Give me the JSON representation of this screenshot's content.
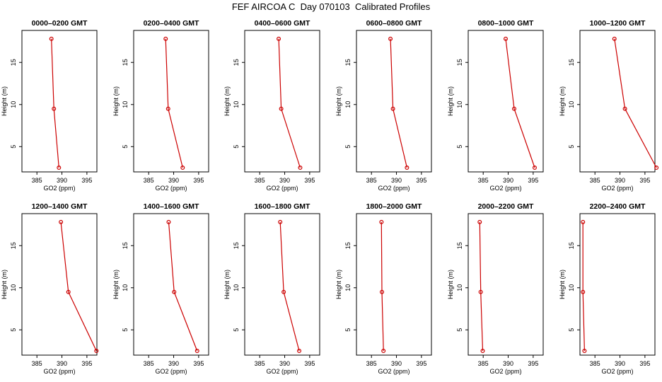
{
  "figure_title": "FEF AIRCOA C  Day 070103  Calibrated Profiles",
  "colors": {
    "profile": "#cc0000",
    "axis": "#000000"
  },
  "chart_data": [
    {
      "type": "line",
      "title": "0000–0200 GMT",
      "xlabel": "GO2 (ppm)",
      "ylabel": "Height (m)",
      "xlim": [
        382,
        397
      ],
      "ylim": [
        2,
        18.8
      ],
      "xticks": [
        385,
        390,
        395
      ],
      "yticks": [
        5,
        10,
        15
      ],
      "x": [
        389.4,
        388.4,
        387.9
      ],
      "y": [
        2.5,
        9.5,
        17.8
      ]
    },
    {
      "type": "line",
      "title": "0200–0400 GMT",
      "xlabel": "GO2 (ppm)",
      "ylabel": "Height (m)",
      "xlim": [
        382,
        397
      ],
      "ylim": [
        2,
        18.8
      ],
      "xticks": [
        385,
        390,
        395
      ],
      "yticks": [
        5,
        10,
        15
      ],
      "x": [
        391.8,
        388.9,
        388.4
      ],
      "y": [
        2.5,
        9.5,
        17.8
      ]
    },
    {
      "type": "line",
      "title": "0400–0600 GMT",
      "xlabel": "GO2 (ppm)",
      "ylabel": "Height (m)",
      "xlim": [
        382,
        397
      ],
      "ylim": [
        2,
        18.8
      ],
      "xticks": [
        385,
        390,
        395
      ],
      "yticks": [
        5,
        10,
        15
      ],
      "x": [
        393.1,
        389.3,
        388.8
      ],
      "y": [
        2.5,
        9.5,
        17.8
      ]
    },
    {
      "type": "line",
      "title": "0600–0800 GMT",
      "xlabel": "GO2 (ppm)",
      "ylabel": "Height (m)",
      "xlim": [
        382,
        397
      ],
      "ylim": [
        2,
        18.8
      ],
      "xticks": [
        385,
        390,
        395
      ],
      "yticks": [
        5,
        10,
        15
      ],
      "x": [
        392.1,
        389.3,
        388.8
      ],
      "y": [
        2.5,
        9.5,
        17.8
      ]
    },
    {
      "type": "line",
      "title": "0800–1000 GMT",
      "xlabel": "GO2 (ppm)",
      "ylabel": "Height (m)",
      "xlim": [
        382,
        397
      ],
      "ylim": [
        2,
        18.8
      ],
      "xticks": [
        385,
        390,
        395
      ],
      "yticks": [
        5,
        10,
        15
      ],
      "x": [
        395.3,
        391.2,
        389.5
      ],
      "y": [
        2.5,
        9.5,
        17.8
      ]
    },
    {
      "type": "line",
      "title": "1000–1200 GMT",
      "xlabel": "GO2 (ppm)",
      "ylabel": "Height (m)",
      "xlim": [
        382,
        397
      ],
      "ylim": [
        2,
        18.8
      ],
      "xticks": [
        385,
        390,
        395
      ],
      "yticks": [
        5,
        10,
        15
      ],
      "x": [
        397.3,
        391.0,
        388.9
      ],
      "y": [
        2.5,
        9.5,
        17.8
      ]
    },
    {
      "type": "line",
      "title": "1200–1400 GMT",
      "xlabel": "GO2 (ppm)",
      "ylabel": "Height (m)",
      "xlim": [
        382,
        397
      ],
      "ylim": [
        2,
        18.8
      ],
      "xticks": [
        385,
        390,
        395
      ],
      "yticks": [
        5,
        10,
        15
      ],
      "x": [
        396.9,
        391.3,
        389.8
      ],
      "y": [
        2.5,
        9.5,
        17.8
      ]
    },
    {
      "type": "line",
      "title": "1400–1600 GMT",
      "xlabel": "GO2 (ppm)",
      "ylabel": "Height (m)",
      "xlim": [
        382,
        397
      ],
      "ylim": [
        2,
        18.8
      ],
      "xticks": [
        385,
        390,
        395
      ],
      "yticks": [
        5,
        10,
        15
      ],
      "x": [
        394.7,
        390.1,
        389.0
      ],
      "y": [
        2.5,
        9.5,
        17.8
      ]
    },
    {
      "type": "line",
      "title": "1600–1800 GMT",
      "xlabel": "GO2 (ppm)",
      "ylabel": "Height (m)",
      "xlim": [
        382,
        397
      ],
      "ylim": [
        2,
        18.8
      ],
      "xticks": [
        385,
        390,
        395
      ],
      "yticks": [
        5,
        10,
        15
      ],
      "x": [
        392.9,
        389.8,
        389.1
      ],
      "y": [
        2.5,
        9.5,
        17.8
      ]
    },
    {
      "type": "line",
      "title": "1800–2000 GMT",
      "xlabel": "GO2 (ppm)",
      "ylabel": "Height (m)",
      "xlim": [
        382,
        397
      ],
      "ylim": [
        2,
        18.8
      ],
      "xticks": [
        385,
        390,
        395
      ],
      "yticks": [
        5,
        10,
        15
      ],
      "x": [
        387.4,
        387.1,
        387.0
      ],
      "y": [
        2.5,
        9.5,
        17.8
      ]
    },
    {
      "type": "line",
      "title": "2000–2200 GMT",
      "xlabel": "GO2 (ppm)",
      "ylabel": "Height (m)",
      "xlim": [
        382,
        397
      ],
      "ylim": [
        2,
        18.8
      ],
      "xticks": [
        385,
        390,
        395
      ],
      "yticks": [
        5,
        10,
        15
      ],
      "x": [
        384.9,
        384.5,
        384.3
      ],
      "y": [
        2.5,
        9.5,
        17.8
      ]
    },
    {
      "type": "line",
      "title": "2200–2400 GMT",
      "xlabel": "GO2 (ppm)",
      "ylabel": "Height (m)",
      "xlim": [
        382,
        397
      ],
      "ylim": [
        2,
        18.8
      ],
      "xticks": [
        385,
        390,
        395
      ],
      "yticks": [
        5,
        10,
        15
      ],
      "x": [
        382.9,
        382.6,
        382.6
      ],
      "y": [
        2.5,
        9.5,
        17.8
      ]
    }
  ]
}
